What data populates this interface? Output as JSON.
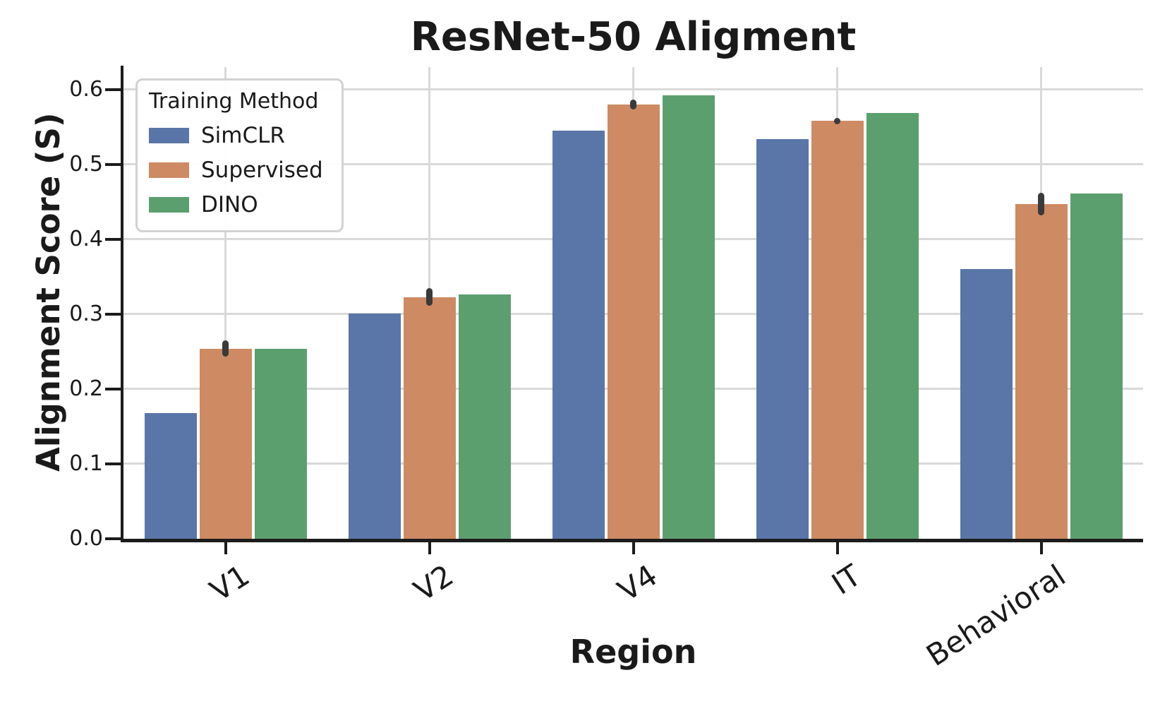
{
  "chart": {
    "title": "ResNet-50 Aligment",
    "xlabel": "Region",
    "ylabel": "Alignment Score (S)",
    "legend_title": "Training Method"
  },
  "chart_data": {
    "type": "bar",
    "title": "ResNet-50 Aligment",
    "xlabel": "Region",
    "ylabel": "Alignment Score (S)",
    "categories": [
      "V1",
      "V2",
      "V4",
      "IT",
      "Behavioral"
    ],
    "series": [
      {
        "name": "SimCLR",
        "color": "#5A76A8",
        "values": [
          0.168,
          0.301,
          0.545,
          0.534,
          0.36
        ],
        "errors": [
          0,
          0,
          0,
          0,
          0
        ]
      },
      {
        "name": "Supervised",
        "color": "#CD8A63",
        "values": [
          0.254,
          0.323,
          0.58,
          0.558,
          0.447
        ],
        "errors": [
          0.011,
          0.012,
          0.007,
          0.004,
          0.015
        ]
      },
      {
        "name": "DINO",
        "color": "#5C9F6E",
        "values": [
          0.254,
          0.326,
          0.592,
          0.569,
          0.461
        ],
        "errors": [
          0,
          0,
          0,
          0,
          0
        ]
      }
    ],
    "ylim": [
      0,
      0.63
    ],
    "yticks": [
      0.0,
      0.1,
      0.2,
      0.3,
      0.4,
      0.5,
      0.6
    ],
    "grid": "both",
    "legend_position": "upper-left",
    "legend_title": "Training Method",
    "style": {
      "grid_color": "#d9d9d9",
      "spine_color": "#1c1c1c",
      "errorbar_color": "#3a3a3a",
      "tick_label_color": "#1a1a1a"
    }
  }
}
